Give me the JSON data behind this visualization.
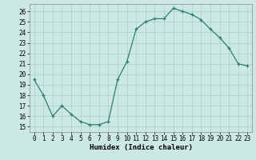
{
  "x": [
    0,
    1,
    2,
    3,
    4,
    5,
    6,
    7,
    8,
    9,
    10,
    11,
    12,
    13,
    14,
    15,
    16,
    17,
    18,
    19,
    20,
    21,
    22,
    23
  ],
  "y": [
    19.5,
    18.0,
    16.0,
    17.0,
    16.2,
    15.5,
    15.2,
    15.2,
    15.5,
    19.5,
    21.2,
    24.3,
    25.0,
    25.3,
    25.3,
    26.3,
    26.0,
    25.7,
    25.2,
    24.3,
    23.5,
    22.5,
    21.0,
    20.8
  ],
  "title": "",
  "xlabel": "Humidex (Indice chaleur)",
  "ylabel": "",
  "xlim": [
    -0.5,
    23.5
  ],
  "ylim": [
    14.5,
    26.7
  ],
  "yticks": [
    15,
    16,
    17,
    18,
    19,
    20,
    21,
    22,
    23,
    24,
    25,
    26
  ],
  "xticks": [
    0,
    1,
    2,
    3,
    4,
    5,
    6,
    7,
    8,
    9,
    10,
    11,
    12,
    13,
    14,
    15,
    16,
    17,
    18,
    19,
    20,
    21,
    22,
    23
  ],
  "line_color": "#2e7d6e",
  "marker": "+",
  "bg_color": "#cce8e4",
  "grid_color": "#aacfcb",
  "label_fontsize": 6.5,
  "tick_fontsize": 5.5
}
